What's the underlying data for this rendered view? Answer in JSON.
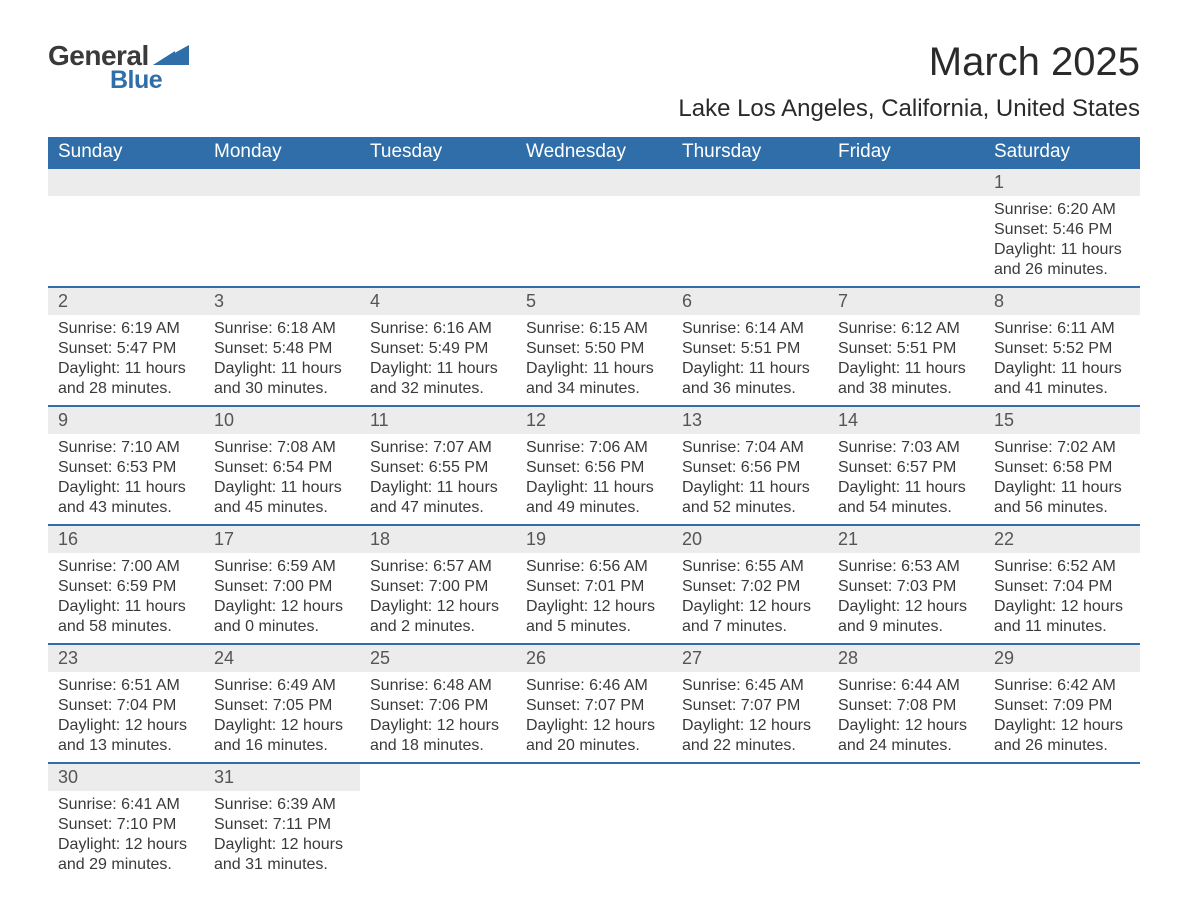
{
  "logo": {
    "text1": "General",
    "text2": "Blue",
    "shape_color": "#2f6ea8"
  },
  "title": "March 2025",
  "location": "Lake Los Angeles, California, United States",
  "colors": {
    "header_bg": "#2f6ea8",
    "header_text": "#ffffff",
    "daynum_bg": "#ececec",
    "row_border": "#2f6ea8",
    "body_text": "#3a3a3a"
  },
  "typography": {
    "title_fontsize": 40,
    "location_fontsize": 24,
    "weekday_fontsize": 19,
    "daynum_fontsize": 18,
    "body_fontsize": 16
  },
  "weekdays": [
    "Sunday",
    "Monday",
    "Tuesday",
    "Wednesday",
    "Thursday",
    "Friday",
    "Saturday"
  ],
  "weeks": [
    [
      {
        "empty": true
      },
      {
        "empty": true
      },
      {
        "empty": true
      },
      {
        "empty": true
      },
      {
        "empty": true
      },
      {
        "empty": true
      },
      {
        "day": "1",
        "sunrise": "Sunrise: 6:20 AM",
        "sunset": "Sunset: 5:46 PM",
        "dl1": "Daylight: 11 hours",
        "dl2": "and 26 minutes."
      }
    ],
    [
      {
        "day": "2",
        "sunrise": "Sunrise: 6:19 AM",
        "sunset": "Sunset: 5:47 PM",
        "dl1": "Daylight: 11 hours",
        "dl2": "and 28 minutes."
      },
      {
        "day": "3",
        "sunrise": "Sunrise: 6:18 AM",
        "sunset": "Sunset: 5:48 PM",
        "dl1": "Daylight: 11 hours",
        "dl2": "and 30 minutes."
      },
      {
        "day": "4",
        "sunrise": "Sunrise: 6:16 AM",
        "sunset": "Sunset: 5:49 PM",
        "dl1": "Daylight: 11 hours",
        "dl2": "and 32 minutes."
      },
      {
        "day": "5",
        "sunrise": "Sunrise: 6:15 AM",
        "sunset": "Sunset: 5:50 PM",
        "dl1": "Daylight: 11 hours",
        "dl2": "and 34 minutes."
      },
      {
        "day": "6",
        "sunrise": "Sunrise: 6:14 AM",
        "sunset": "Sunset: 5:51 PM",
        "dl1": "Daylight: 11 hours",
        "dl2": "and 36 minutes."
      },
      {
        "day": "7",
        "sunrise": "Sunrise: 6:12 AM",
        "sunset": "Sunset: 5:51 PM",
        "dl1": "Daylight: 11 hours",
        "dl2": "and 38 minutes."
      },
      {
        "day": "8",
        "sunrise": "Sunrise: 6:11 AM",
        "sunset": "Sunset: 5:52 PM",
        "dl1": "Daylight: 11 hours",
        "dl2": "and 41 minutes."
      }
    ],
    [
      {
        "day": "9",
        "sunrise": "Sunrise: 7:10 AM",
        "sunset": "Sunset: 6:53 PM",
        "dl1": "Daylight: 11 hours",
        "dl2": "and 43 minutes."
      },
      {
        "day": "10",
        "sunrise": "Sunrise: 7:08 AM",
        "sunset": "Sunset: 6:54 PM",
        "dl1": "Daylight: 11 hours",
        "dl2": "and 45 minutes."
      },
      {
        "day": "11",
        "sunrise": "Sunrise: 7:07 AM",
        "sunset": "Sunset: 6:55 PM",
        "dl1": "Daylight: 11 hours",
        "dl2": "and 47 minutes."
      },
      {
        "day": "12",
        "sunrise": "Sunrise: 7:06 AM",
        "sunset": "Sunset: 6:56 PM",
        "dl1": "Daylight: 11 hours",
        "dl2": "and 49 minutes."
      },
      {
        "day": "13",
        "sunrise": "Sunrise: 7:04 AM",
        "sunset": "Sunset: 6:56 PM",
        "dl1": "Daylight: 11 hours",
        "dl2": "and 52 minutes."
      },
      {
        "day": "14",
        "sunrise": "Sunrise: 7:03 AM",
        "sunset": "Sunset: 6:57 PM",
        "dl1": "Daylight: 11 hours",
        "dl2": "and 54 minutes."
      },
      {
        "day": "15",
        "sunrise": "Sunrise: 7:02 AM",
        "sunset": "Sunset: 6:58 PM",
        "dl1": "Daylight: 11 hours",
        "dl2": "and 56 minutes."
      }
    ],
    [
      {
        "day": "16",
        "sunrise": "Sunrise: 7:00 AM",
        "sunset": "Sunset: 6:59 PM",
        "dl1": "Daylight: 11 hours",
        "dl2": "and 58 minutes."
      },
      {
        "day": "17",
        "sunrise": "Sunrise: 6:59 AM",
        "sunset": "Sunset: 7:00 PM",
        "dl1": "Daylight: 12 hours",
        "dl2": "and 0 minutes."
      },
      {
        "day": "18",
        "sunrise": "Sunrise: 6:57 AM",
        "sunset": "Sunset: 7:00 PM",
        "dl1": "Daylight: 12 hours",
        "dl2": "and 2 minutes."
      },
      {
        "day": "19",
        "sunrise": "Sunrise: 6:56 AM",
        "sunset": "Sunset: 7:01 PM",
        "dl1": "Daylight: 12 hours",
        "dl2": "and 5 minutes."
      },
      {
        "day": "20",
        "sunrise": "Sunrise: 6:55 AM",
        "sunset": "Sunset: 7:02 PM",
        "dl1": "Daylight: 12 hours",
        "dl2": "and 7 minutes."
      },
      {
        "day": "21",
        "sunrise": "Sunrise: 6:53 AM",
        "sunset": "Sunset: 7:03 PM",
        "dl1": "Daylight: 12 hours",
        "dl2": "and 9 minutes."
      },
      {
        "day": "22",
        "sunrise": "Sunrise: 6:52 AM",
        "sunset": "Sunset: 7:04 PM",
        "dl1": "Daylight: 12 hours",
        "dl2": "and 11 minutes."
      }
    ],
    [
      {
        "day": "23",
        "sunrise": "Sunrise: 6:51 AM",
        "sunset": "Sunset: 7:04 PM",
        "dl1": "Daylight: 12 hours",
        "dl2": "and 13 minutes."
      },
      {
        "day": "24",
        "sunrise": "Sunrise: 6:49 AM",
        "sunset": "Sunset: 7:05 PM",
        "dl1": "Daylight: 12 hours",
        "dl2": "and 16 minutes."
      },
      {
        "day": "25",
        "sunrise": "Sunrise: 6:48 AM",
        "sunset": "Sunset: 7:06 PM",
        "dl1": "Daylight: 12 hours",
        "dl2": "and 18 minutes."
      },
      {
        "day": "26",
        "sunrise": "Sunrise: 6:46 AM",
        "sunset": "Sunset: 7:07 PM",
        "dl1": "Daylight: 12 hours",
        "dl2": "and 20 minutes."
      },
      {
        "day": "27",
        "sunrise": "Sunrise: 6:45 AM",
        "sunset": "Sunset: 7:07 PM",
        "dl1": "Daylight: 12 hours",
        "dl2": "and 22 minutes."
      },
      {
        "day": "28",
        "sunrise": "Sunrise: 6:44 AM",
        "sunset": "Sunset: 7:08 PM",
        "dl1": "Daylight: 12 hours",
        "dl2": "and 24 minutes."
      },
      {
        "day": "29",
        "sunrise": "Sunrise: 6:42 AM",
        "sunset": "Sunset: 7:09 PM",
        "dl1": "Daylight: 12 hours",
        "dl2": "and 26 minutes."
      }
    ],
    [
      {
        "day": "30",
        "sunrise": "Sunrise: 6:41 AM",
        "sunset": "Sunset: 7:10 PM",
        "dl1": "Daylight: 12 hours",
        "dl2": "and 29 minutes."
      },
      {
        "day": "31",
        "sunrise": "Sunrise: 6:39 AM",
        "sunset": "Sunset: 7:11 PM",
        "dl1": "Daylight: 12 hours",
        "dl2": "and 31 minutes."
      },
      {
        "empty": true
      },
      {
        "empty": true
      },
      {
        "empty": true
      },
      {
        "empty": true
      },
      {
        "empty": true
      }
    ]
  ]
}
